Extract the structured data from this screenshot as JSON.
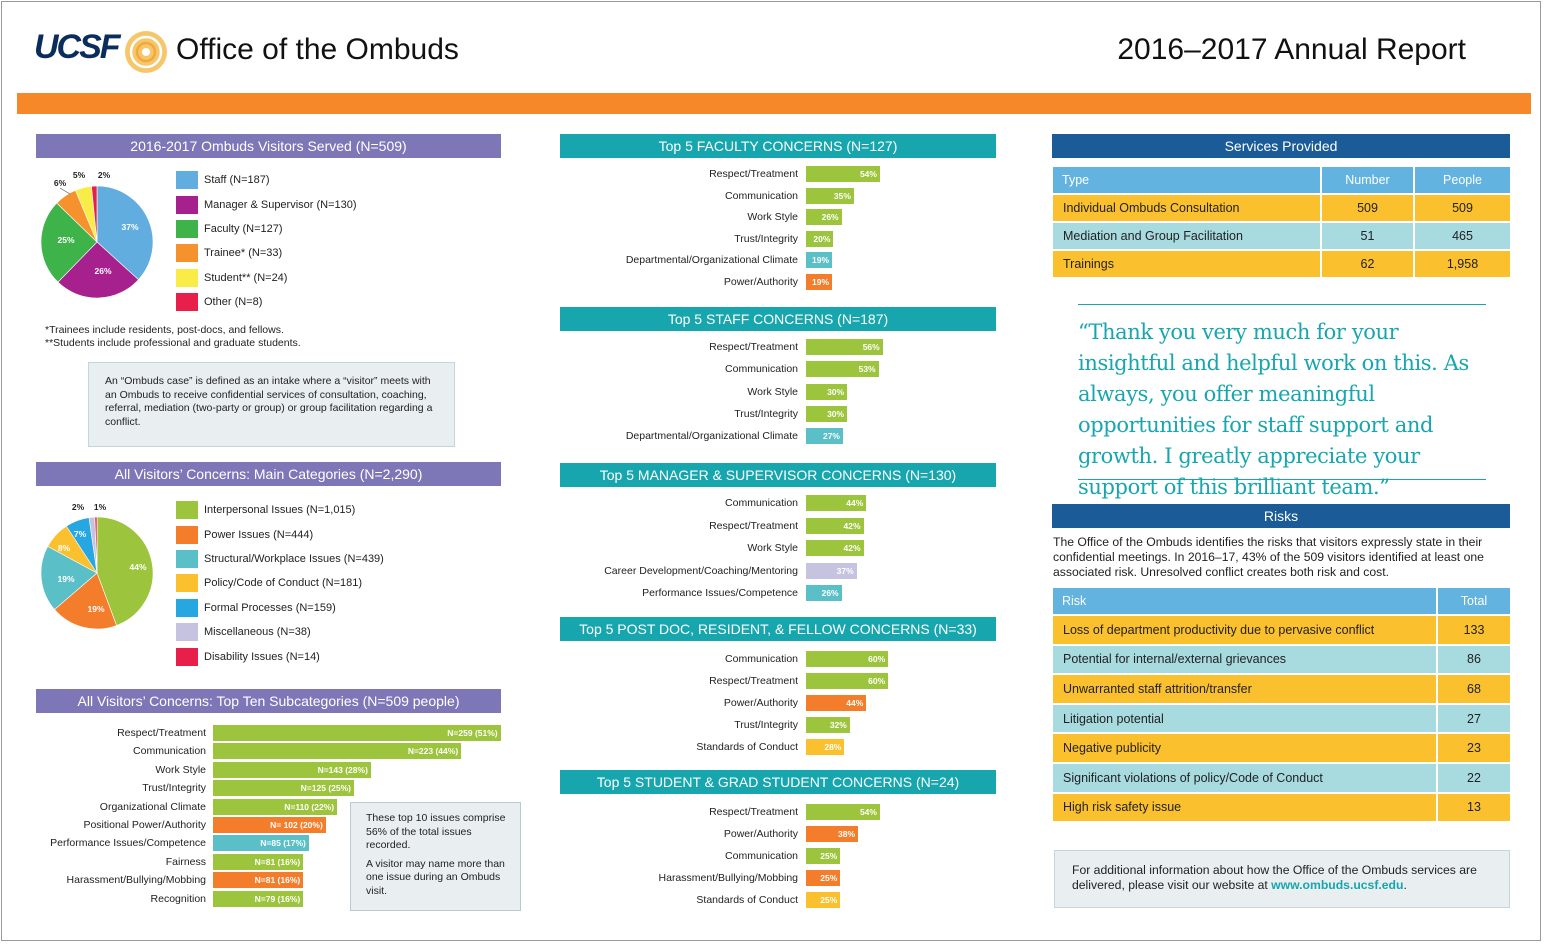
{
  "header": {
    "logo": "UCSF",
    "office_title": "Office of the Ombuds",
    "report_title": "2016–2017 Annual Report"
  },
  "colors": {
    "orange": "#f6882a",
    "purple": "#7d77b8",
    "teal": "#17a6ad",
    "navy": "#1a5b98",
    "green": "#9cc43c",
    "blue": "#62b3df",
    "yellow": "#fbc02d"
  },
  "visitors": {
    "title": "2016-2017 Ombuds Visitors Served (N=509)",
    "legend": [
      {
        "label": "Staff (N=187)",
        "color": "#62addf"
      },
      {
        "label": "Manager & Supervisor (N=130)",
        "color": "#a6208e"
      },
      {
        "label": "Faculty (N=127)",
        "color": "#3db34a"
      },
      {
        "label": "Trainee* (N=33)",
        "color": "#f6922e"
      },
      {
        "label": "Student** (N=24)",
        "color": "#f9ec47"
      },
      {
        "label": "Other (N=8)",
        "color": "#e81f4b"
      }
    ],
    "pie_labels": [
      "37%",
      "26%",
      "25%",
      "6%",
      "5%",
      "2%"
    ],
    "footnote1": "*Trainees include residents, post-docs, and fellows.",
    "footnote2": "**Students include professional and graduate students.",
    "definition": "An “Ombuds case” is defined as an intake where a “visitor” meets with an Ombuds to receive confidential services of consultation, coaching, referral, mediation (two-party or group) or group facilitation regarding a conflict."
  },
  "categories": {
    "title": "All Visitors’ Concerns: Main Categories (N=2,290)",
    "legend": [
      {
        "label": "Interpersonal Issues (N=1,015)",
        "color": "#9cc43c"
      },
      {
        "label": "Power Issues (N=444)",
        "color": "#f47d2c"
      },
      {
        "label": "Structural/Workplace Issues (N=439)",
        "color": "#5bbfc7"
      },
      {
        "label": "Policy/Code of Conduct (N=181)",
        "color": "#fbc02d"
      },
      {
        "label": "Formal Processes (N=159)",
        "color": "#27a7e1"
      },
      {
        "label": "Miscellaneous (N=38)",
        "color": "#c6c3e1"
      },
      {
        "label": "Disability Issues (N=14)",
        "color": "#e81f4b"
      }
    ],
    "pie_labels": [
      "44%",
      "19%",
      "19%",
      "8%",
      "7%",
      "2%",
      "1%"
    ]
  },
  "subcategories": {
    "title": "All Visitors’ Concerns: Top Ten Subcategories (N=509 people)",
    "rows": [
      {
        "label": "Respect/Treatment",
        "value": "N=259 (51%)",
        "pct": 51,
        "color": "#9cc43c"
      },
      {
        "label": "Communication",
        "value": "N=223 (44%)",
        "pct": 44,
        "color": "#9cc43c"
      },
      {
        "label": "Work Style",
        "value": "N=143 (28%)",
        "pct": 28,
        "color": "#9cc43c"
      },
      {
        "label": "Trust/Integrity",
        "value": "N=125 (25%)",
        "pct": 25,
        "color": "#9cc43c"
      },
      {
        "label": "Organizational Climate",
        "value": "N=110 (22%)",
        "pct": 22,
        "color": "#9cc43c"
      },
      {
        "label": "Positional Power/Authority",
        "value": "N= 102 (20%)",
        "pct": 20,
        "color": "#f47d2c"
      },
      {
        "label": "Performance Issues/Competence",
        "value": "N=85 (17%)",
        "pct": 17,
        "color": "#5bbfc7"
      },
      {
        "label": "Fairness",
        "value": "N=81 (16%)",
        "pct": 16,
        "color": "#9cc43c"
      },
      {
        "label": "Harassment/Bullying/Mobbing",
        "value": "N=81 (16%)",
        "pct": 16,
        "color": "#f47d2c"
      },
      {
        "label": "Recognition",
        "value": "N=79 (16%)",
        "pct": 16,
        "color": "#9cc43c"
      }
    ],
    "callout1": "These top 10 issues comprise 56% of the total issues recorded.",
    "callout2": "A visitor may name more than one issue during an Ombuds visit."
  },
  "concerns": [
    {
      "title": "Top 5 FACULTY CONCERNS (N=127)",
      "rows": [
        {
          "label": "Respect/Treatment",
          "value": "54%",
          "pct": 54,
          "color": "#9cc43c"
        },
        {
          "label": "Communication",
          "value": "35%",
          "pct": 35,
          "color": "#9cc43c"
        },
        {
          "label": "Work Style",
          "value": "26%",
          "pct": 26,
          "color": "#9cc43c"
        },
        {
          "label": "Trust/Integrity",
          "value": "20%",
          "pct": 20,
          "color": "#9cc43c"
        },
        {
          "label": "Departmental/Organizational Climate",
          "value": "19%",
          "pct": 19,
          "color": "#5bbfc7"
        },
        {
          "label": "Power/Authority",
          "value": "19%",
          "pct": 19,
          "color": "#f47d2c"
        }
      ]
    },
    {
      "title": "Top 5 STAFF CONCERNS (N=187)",
      "rows": [
        {
          "label": "Respect/Treatment",
          "value": "56%",
          "pct": 56,
          "color": "#9cc43c"
        },
        {
          "label": "Communication",
          "value": "53%",
          "pct": 53,
          "color": "#9cc43c"
        },
        {
          "label": "Work Style",
          "value": "30%",
          "pct": 30,
          "color": "#9cc43c"
        },
        {
          "label": "Trust/Integrity",
          "value": "30%",
          "pct": 30,
          "color": "#9cc43c"
        },
        {
          "label": "Departmental/Organizational Climate",
          "value": "27%",
          "pct": 27,
          "color": "#5bbfc7"
        }
      ]
    },
    {
      "title": "Top 5 MANAGER & SUPERVISOR CONCERNS (N=130)",
      "rows": [
        {
          "label": "Communication",
          "value": "44%",
          "pct": 44,
          "color": "#9cc43c"
        },
        {
          "label": "Respect/Treatment",
          "value": "42%",
          "pct": 42,
          "color": "#9cc43c"
        },
        {
          "label": "Work Style",
          "value": "42%",
          "pct": 42,
          "color": "#9cc43c"
        },
        {
          "label": "Career Development/Coaching/Mentoring",
          "value": "37%",
          "pct": 37,
          "color": "#c6c3e1"
        },
        {
          "label": "Performance Issues/Competence",
          "value": "26%",
          "pct": 26,
          "color": "#5bbfc7"
        }
      ]
    },
    {
      "title": "Top 5 POST DOC, RESIDENT, & FELLOW CONCERNS (N=33)",
      "rows": [
        {
          "label": "Communication",
          "value": "60%",
          "pct": 60,
          "color": "#9cc43c"
        },
        {
          "label": "Respect/Treatment",
          "value": "60%",
          "pct": 60,
          "color": "#9cc43c"
        },
        {
          "label": "Power/Authority",
          "value": "44%",
          "pct": 44,
          "color": "#f47d2c"
        },
        {
          "label": "Trust/Integrity",
          "value": "32%",
          "pct": 32,
          "color": "#9cc43c"
        },
        {
          "label": "Standards of Conduct",
          "value": "28%",
          "pct": 28,
          "color": "#fbc02d"
        }
      ]
    },
    {
      "title": "Top 5 STUDENT & GRAD STUDENT CONCERNS (N=24)",
      "rows": [
        {
          "label": "Respect/Treatment",
          "value": "54%",
          "pct": 54,
          "color": "#9cc43c"
        },
        {
          "label": "Power/Authority",
          "value": "38%",
          "pct": 38,
          "color": "#f47d2c"
        },
        {
          "label": "Communication",
          "value": "25%",
          "pct": 25,
          "color": "#9cc43c"
        },
        {
          "label": "Harassment/Bullying/Mobbing",
          "value": "25%",
          "pct": 25,
          "color": "#f47d2c"
        },
        {
          "label": "Standards of Conduct",
          "value": "25%",
          "pct": 25,
          "color": "#fbc02d"
        }
      ]
    }
  ],
  "services": {
    "title": "Services Provided",
    "headers": [
      "Type",
      "Number",
      "People"
    ],
    "rows": [
      {
        "type": "Individual Ombuds Consultation",
        "number": "509",
        "people": "509",
        "color": "#fbc02d"
      },
      {
        "type": "Mediation and Group Facilitation",
        "number": "51",
        "people": "465",
        "color": "#a8dbe0"
      },
      {
        "type": "Trainings",
        "number": "62",
        "people": "1,958",
        "color": "#fbc02d"
      }
    ]
  },
  "quote": "“Thank you very much for your insightful and helpful work on this. As always, you offer meaningful opportunities for staff support and growth. I greatly appreciate your support of this brilliant team.”",
  "risks": {
    "title": "Risks",
    "intro": "The Office of the Ombuds identifies the risks that visitors expressly state in their confidential meetings. In 2016–17, 43% of the 509 visitors identified at least one associated risk. Unresolved conflict creates both risk and cost.",
    "headers": [
      "Risk",
      "Total"
    ],
    "rows": [
      {
        "risk": "Loss of department productivity due to pervasive conflict",
        "total": "133",
        "color": "#fbc02d"
      },
      {
        "risk": "Potential for internal/external grievances",
        "total": "86",
        "color": "#a8dbe0"
      },
      {
        "risk": "Unwarranted staff attrition/transfer",
        "total": "68",
        "color": "#fbc02d"
      },
      {
        "risk": "Litigation potential",
        "total": "27",
        "color": "#a8dbe0"
      },
      {
        "risk": "Negative publicity",
        "total": "23",
        "color": "#fbc02d"
      },
      {
        "risk": "Significant violations of policy/Code of Conduct",
        "total": "22",
        "color": "#a8dbe0"
      },
      {
        "risk": "High risk safety issue",
        "total": "13",
        "color": "#fbc02d"
      }
    ]
  },
  "info": {
    "text": "For additional information about how the Office of the Ombuds services are delivered, please visit our website at ",
    "link": "www.ombuds.ucsf.edu",
    "end": "."
  },
  "chart_data": [
    {
      "type": "pie",
      "title": "2016-2017 Ombuds Visitors Served (N=509)",
      "categories": [
        "Staff (N=187)",
        "Manager & Supervisor (N=130)",
        "Faculty (N=127)",
        "Trainee* (N=33)",
        "Student** (N=24)",
        "Other (N=8)"
      ],
      "values": [
        187,
        130,
        127,
        33,
        24,
        8
      ]
    },
    {
      "type": "pie",
      "title": "All Visitors’ Concerns: Main Categories (N=2,290)",
      "categories": [
        "Interpersonal Issues (N=1,015)",
        "Power Issues (N=444)",
        "Structural/Workplace Issues (N=439)",
        "Policy/Code of Conduct (N=181)",
        "Formal Processes (N=159)",
        "Miscellaneous (N=38)",
        "Disability Issues (N=14)"
      ],
      "values": [
        1015,
        444,
        439,
        181,
        159,
        38,
        14
      ]
    },
    {
      "type": "bar",
      "title": "All Visitors’ Concerns: Top Ten Subcategories (N=509 people)",
      "categories": [
        "Respect/Treatment",
        "Communication",
        "Work Style",
        "Trust/Integrity",
        "Organizational Climate",
        "Positional Power/Authority",
        "Performance Issues/Competence",
        "Fairness",
        "Harassment/Bullying/Mobbing",
        "Recognition"
      ],
      "values": [
        259,
        223,
        143,
        125,
        110,
        102,
        85,
        81,
        81,
        79
      ]
    },
    {
      "type": "bar",
      "title": "Top 5 FACULTY CONCERNS (N=127)",
      "categories": [
        "Respect/Treatment",
        "Communication",
        "Work Style",
        "Trust/Integrity",
        "Departmental/Organizational Climate",
        "Power/Authority"
      ],
      "values": [
        54,
        35,
        26,
        20,
        19,
        19
      ]
    },
    {
      "type": "bar",
      "title": "Top 5 STAFF CONCERNS (N=187)",
      "categories": [
        "Respect/Treatment",
        "Communication",
        "Work Style",
        "Trust/Integrity",
        "Departmental/Organizational Climate"
      ],
      "values": [
        56,
        53,
        30,
        30,
        27
      ]
    },
    {
      "type": "bar",
      "title": "Top 5 MANAGER & SUPERVISOR CONCERNS (N=130)",
      "categories": [
        "Communication",
        "Respect/Treatment",
        "Work Style",
        "Career Development/Coaching/Mentoring",
        "Performance Issues/Competence"
      ],
      "values": [
        44,
        42,
        42,
        37,
        26
      ]
    },
    {
      "type": "bar",
      "title": "Top 5 POST DOC, RESIDENT, & FELLOW CONCERNS (N=33)",
      "categories": [
        "Communication",
        "Respect/Treatment",
        "Power/Authority",
        "Trust/Integrity",
        "Standards of Conduct"
      ],
      "values": [
        60,
        60,
        44,
        32,
        28
      ]
    },
    {
      "type": "bar",
      "title": "Top 5 STUDENT & GRAD STUDENT CONCERNS (N=24)",
      "categories": [
        "Respect/Treatment",
        "Power/Authority",
        "Communication",
        "Harassment/Bullying/Mobbing",
        "Standards of Conduct"
      ],
      "values": [
        54,
        38,
        25,
        25,
        25
      ]
    }
  ]
}
